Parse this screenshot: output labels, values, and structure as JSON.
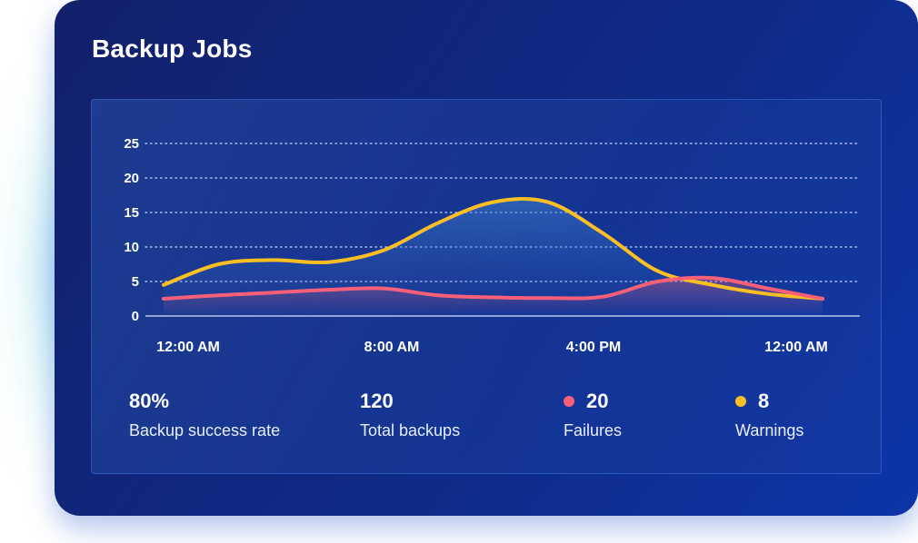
{
  "title": "Backup Jobs",
  "colors": {
    "failures": "#f8607a",
    "warnings": "#fbbf24",
    "grid": "#c9d6ff",
    "axis": "#dce6ff"
  },
  "chart_data": {
    "type": "line",
    "title": "",
    "xlabel": "",
    "ylabel": "",
    "ylim": [
      0,
      25
    ],
    "yticks": [
      0,
      5,
      10,
      15,
      20,
      25
    ],
    "xtick_labels": [
      "12:00 AM",
      "8:00 AM",
      "4:00 PM",
      "12:00 AM"
    ],
    "grid": true,
    "x": [
      0,
      2,
      4,
      6,
      8,
      10,
      12,
      14,
      16,
      18,
      20,
      22,
      24
    ],
    "series": [
      {
        "name": "Failures",
        "color": "#f8607a",
        "values": [
          2.5,
          3.0,
          3.4,
          3.8,
          4.0,
          3.0,
          2.7,
          2.6,
          2.8,
          5.0,
          5.5,
          4.0,
          2.5
        ]
      },
      {
        "name": "Warnings",
        "color": "#fbbf24",
        "values": [
          4.5,
          7.5,
          8.1,
          7.8,
          9.5,
          13.5,
          16.5,
          16.5,
          12.0,
          6.5,
          4.5,
          3.2,
          2.5
        ]
      }
    ]
  },
  "stats": [
    {
      "value": "80%",
      "label": "Backup success rate"
    },
    {
      "value": "120",
      "label": "Total backups"
    },
    {
      "value": "20",
      "label": "Failures"
    },
    {
      "value": "8",
      "label": "Warnings"
    }
  ]
}
